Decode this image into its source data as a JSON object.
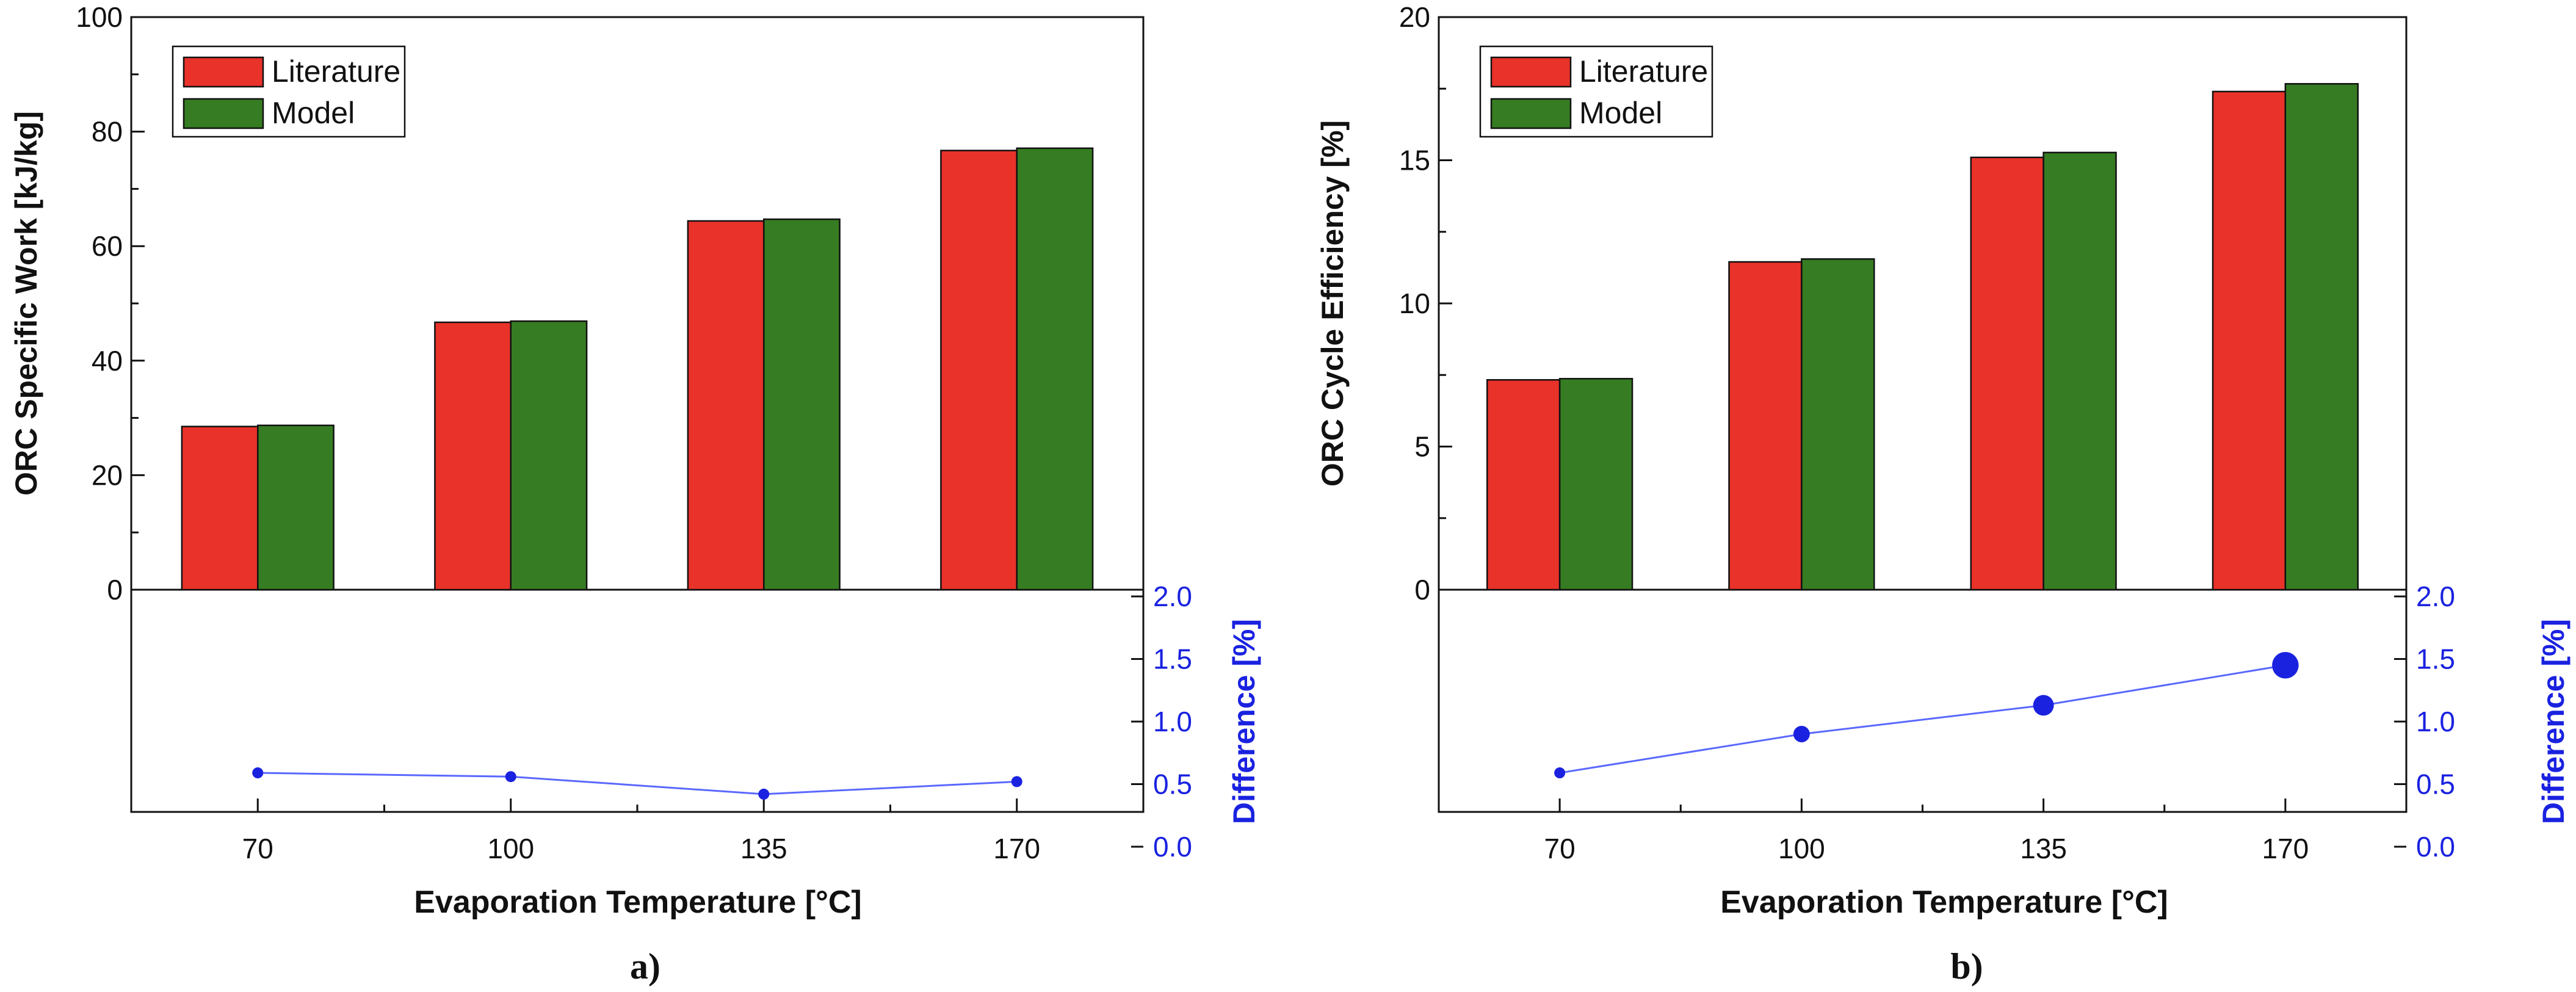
{
  "colors": {
    "literature": "#e8322a",
    "model": "#367c22",
    "difference": "#1a22e0",
    "axis": "#111111"
  },
  "chart_data": [
    {
      "type": "bar",
      "panel_label": "a)",
      "categories": [
        "70",
        "100",
        "135",
        "170"
      ],
      "xlabel": "Evaporation Temperature [°C]",
      "ylabel": "ORC Specific Work [kJ/kg]",
      "ylim": [
        0,
        100
      ],
      "yticks": [
        "0",
        "20",
        "40",
        "60",
        "80",
        "100"
      ],
      "ytick_values": [
        0,
        20,
        40,
        60,
        80,
        100
      ],
      "legend_position": "top-left",
      "series": [
        {
          "name": "Literature",
          "values": [
            28.5,
            46.7,
            64.4,
            76.7
          ]
        },
        {
          "name": "Model",
          "values": [
            28.7,
            46.9,
            64.7,
            77.1
          ]
        }
      ],
      "difference": {
        "label": "Difference [%]",
        "ylim": [
          0,
          2
        ],
        "yticks": [
          "0.0",
          "0.5",
          "1.0",
          "1.5",
          "2.0"
        ],
        "ytick_values": [
          0,
          0.5,
          1.0,
          1.5,
          2.0
        ],
        "values": [
          0.59,
          0.56,
          0.42,
          0.52
        ]
      }
    },
    {
      "type": "bar",
      "panel_label": "b)",
      "categories": [
        "70",
        "100",
        "135",
        "170"
      ],
      "xlabel": "Evaporation Temperature [°C]",
      "ylabel": "ORC Cycle Efficiency [%]",
      "ylim": [
        0,
        20
      ],
      "yticks": [
        "0",
        "5",
        "10",
        "15",
        "20"
      ],
      "ytick_values": [
        0,
        5,
        10,
        15,
        20
      ],
      "legend_position": "top-left",
      "series": [
        {
          "name": "Literature",
          "values": [
            7.33,
            11.45,
            15.1,
            17.4
          ]
        },
        {
          "name": "Model",
          "values": [
            7.37,
            11.55,
            15.27,
            17.67
          ]
        }
      ],
      "difference": {
        "label": "Difference [%]",
        "ylim": [
          0,
          2
        ],
        "yticks": [
          "0.0",
          "0.5",
          "1.0",
          "1.5",
          "2.0"
        ],
        "ytick_values": [
          0,
          0.5,
          1.0,
          1.5,
          2.0
        ],
        "values": [
          0.59,
          0.9,
          1.13,
          1.45
        ]
      }
    }
  ]
}
